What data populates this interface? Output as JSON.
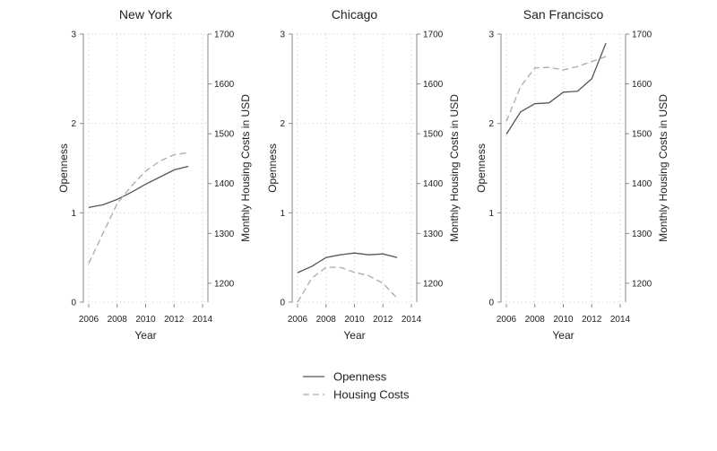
{
  "legend": {
    "items": [
      {
        "label": "Openness",
        "style": "solid"
      },
      {
        "label": "Housing Costs",
        "style": "dashed"
      }
    ]
  },
  "colors": {
    "openness_line": "#555555",
    "housing_line": "#aaaaaa",
    "axis": "#888888",
    "grid": "#d9d9d9"
  },
  "chart_data": [
    {
      "type": "line",
      "title": "New York",
      "xlabel": "Year",
      "ylabel": "Openness",
      "y2label": "Monthly Housing Costs in USD",
      "xlim": [
        2006,
        2014
      ],
      "x_ticks": [
        2006,
        2008,
        2010,
        2012,
        2014
      ],
      "ylim": [
        0,
        3
      ],
      "y_ticks": [
        0,
        1,
        2,
        3
      ],
      "y2lim": [
        1162,
        1700
      ],
      "y2_ticks": [
        1200,
        1300,
        1400,
        1500,
        1600,
        1700
      ],
      "grid": true,
      "series": [
        {
          "name": "Openness",
          "axis": "left",
          "style": "solid",
          "x": [
            2006,
            2007,
            2008,
            2009,
            2010,
            2011,
            2012,
            2013
          ],
          "y": [
            1.06,
            1.09,
            1.15,
            1.23,
            1.32,
            1.4,
            1.48,
            1.52
          ]
        },
        {
          "name": "Housing Costs",
          "axis": "right",
          "style": "dashed",
          "x": [
            2006,
            2007,
            2008,
            2009,
            2010,
            2011,
            2012,
            2013
          ],
          "y": [
            1240,
            1300,
            1360,
            1395,
            1425,
            1445,
            1458,
            1462
          ]
        }
      ]
    },
    {
      "type": "line",
      "title": "Chicago",
      "xlabel": "Year",
      "ylabel": "Openness",
      "y2label": "Monthly Housing Costs in USD",
      "xlim": [
        2006,
        2014
      ],
      "x_ticks": [
        2006,
        2008,
        2010,
        2012,
        2014
      ],
      "ylim": [
        0,
        3
      ],
      "y_ticks": [
        0,
        1,
        2,
        3
      ],
      "y2lim": [
        1162,
        1700
      ],
      "y2_ticks": [
        1200,
        1300,
        1400,
        1500,
        1600,
        1700
      ],
      "grid": true,
      "series": [
        {
          "name": "Openness",
          "axis": "left",
          "style": "solid",
          "x": [
            2006,
            2007,
            2008,
            2009,
            2010,
            2011,
            2012,
            2013
          ],
          "y": [
            0.33,
            0.4,
            0.5,
            0.53,
            0.55,
            0.53,
            0.54,
            0.5
          ]
        },
        {
          "name": "Housing Costs",
          "axis": "right",
          "style": "dashed",
          "x": [
            2006,
            2007,
            2008,
            2009,
            2010,
            2011,
            2012,
            2013
          ],
          "y": [
            1162,
            1210,
            1232,
            1232,
            1222,
            1215,
            1200,
            1170
          ]
        }
      ]
    },
    {
      "type": "line",
      "title": "San Francisco",
      "xlabel": "Year",
      "ylabel": "Openness",
      "y2label": "Monthly Housing Costs in USD",
      "xlim": [
        2006,
        2014
      ],
      "x_ticks": [
        2006,
        2008,
        2010,
        2012,
        2014
      ],
      "ylim": [
        0,
        3
      ],
      "y_ticks": [
        0,
        1,
        2,
        3
      ],
      "y2lim": [
        1162,
        1700
      ],
      "y2_ticks": [
        1200,
        1300,
        1400,
        1500,
        1600,
        1700
      ],
      "grid": true,
      "series": [
        {
          "name": "Openness",
          "axis": "left",
          "style": "solid",
          "x": [
            2006,
            2007,
            2008,
            2009,
            2010,
            2011,
            2012,
            2013
          ],
          "y": [
            1.88,
            2.13,
            2.22,
            2.23,
            2.35,
            2.36,
            2.5,
            2.9
          ]
        },
        {
          "name": "Housing Costs",
          "axis": "right",
          "style": "dashed",
          "x": [
            2006,
            2007,
            2008,
            2009,
            2010,
            2011,
            2012,
            2013
          ],
          "y": [
            1525,
            1595,
            1632,
            1633,
            1628,
            1635,
            1645,
            1655
          ]
        }
      ]
    }
  ]
}
